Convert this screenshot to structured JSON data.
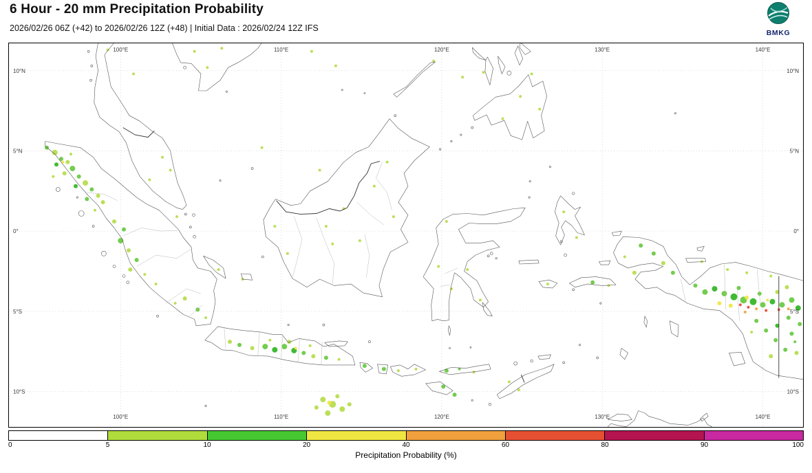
{
  "header": {
    "title": "6 Hour - 20 mm Precipitation Probability",
    "subtitle": "2026/02/26 06Z (+42) to 2026/02/26 12Z (+48) | Initial Data : 2026/02/24 12Z IFS",
    "logo_text": "BMKG"
  },
  "map": {
    "lon_ticks": [
      "100°E",
      "110°E",
      "120°E",
      "130°E",
      "140°E"
    ],
    "lon_values": [
      100,
      110,
      120,
      130,
      140
    ],
    "lat_ticks": [
      "10°N",
      "5°N",
      "0°",
      "5°S",
      "10°S"
    ],
    "lat_values": [
      10,
      5,
      0,
      -5,
      -10
    ],
    "extent": {
      "lon_min": 93.0,
      "lon_max": 142.55,
      "lat_min": -12.25,
      "lat_max": 11.75
    }
  },
  "colorbar": {
    "label": "Precipitation Probability (%)",
    "ticks": [
      0,
      5,
      10,
      20,
      40,
      60,
      80,
      90,
      100
    ],
    "colors": [
      "#ffffff",
      "#b0dc3c",
      "#46c832",
      "#f0e641",
      "#f0a03c",
      "#e65032",
      "#b41450",
      "#c828a0"
    ]
  },
  "precip": {
    "palette": {
      "lg": "#b4dc46",
      "g": "#64c83c",
      "bg": "#2cb41e",
      "y": "#f0e641",
      "o": "#f0a03c",
      "r": "#e64632"
    },
    "blobs": [
      [
        95.4,
        5.2,
        3,
        "g"
      ],
      [
        95.9,
        4.9,
        4,
        "lg"
      ],
      [
        96.3,
        4.5,
        3,
        "g"
      ],
      [
        96.0,
        4.15,
        3,
        "bg"
      ],
      [
        96.7,
        4.3,
        3,
        "lg"
      ],
      [
        97.0,
        3.9,
        4,
        "g"
      ],
      [
        96.5,
        3.6,
        3,
        "lg"
      ],
      [
        97.4,
        3.4,
        3,
        "g"
      ],
      [
        97.8,
        3.0,
        4,
        "lg"
      ],
      [
        97.2,
        2.8,
        3,
        "bg"
      ],
      [
        98.2,
        2.6,
        3,
        "g"
      ],
      [
        98.6,
        2.2,
        3,
        "lg"
      ],
      [
        97.9,
        2.0,
        3,
        "g"
      ],
      [
        98.9,
        1.8,
        3,
        "lg"
      ],
      [
        95.8,
        3.4,
        2,
        "lg"
      ],
      [
        96.9,
        4.8,
        2,
        "lg"
      ],
      [
        98.4,
        1.3,
        2,
        "lg"
      ],
      [
        96.4,
        4.3,
        2,
        "y"
      ],
      [
        99.6,
        0.6,
        3,
        "lg"
      ],
      [
        100.2,
        0.1,
        3,
        "g"
      ],
      [
        100.0,
        -0.6,
        4,
        "g"
      ],
      [
        100.5,
        -1.2,
        3,
        "lg"
      ],
      [
        101.0,
        -1.8,
        3,
        "g"
      ],
      [
        100.6,
        -2.4,
        3,
        "lg"
      ],
      [
        101.5,
        -2.7,
        2,
        "lg"
      ],
      [
        102.2,
        -3.3,
        2,
        "lg"
      ],
      [
        102.6,
        4.6,
        2,
        "lg"
      ],
      [
        103.1,
        3.8,
        2,
        "lg"
      ],
      [
        101.8,
        3.2,
        2,
        "lg"
      ],
      [
        103.5,
        0.9,
        2,
        "lg"
      ],
      [
        104.0,
        -4.2,
        3,
        "lg"
      ],
      [
        104.8,
        -4.9,
        3,
        "g"
      ],
      [
        105.3,
        -5.4,
        2,
        "lg"
      ],
      [
        103.4,
        -4.5,
        2,
        "lg"
      ],
      [
        106.1,
        -2.4,
        2,
        "lg"
      ],
      [
        107.6,
        -3.0,
        2,
        "lg"
      ],
      [
        106.8,
        -6.9,
        3,
        "lg"
      ],
      [
        107.4,
        -7.1,
        3,
        "g"
      ],
      [
        108.2,
        -7.3,
        3,
        "lg"
      ],
      [
        109.0,
        -7.2,
        4,
        "g"
      ],
      [
        109.6,
        -7.4,
        4,
        "bg"
      ],
      [
        110.2,
        -7.2,
        4,
        "g"
      ],
      [
        110.8,
        -7.45,
        4,
        "bg"
      ],
      [
        111.4,
        -7.6,
        3,
        "g"
      ],
      [
        112.0,
        -7.8,
        3,
        "lg"
      ],
      [
        112.8,
        -7.9,
        3,
        "g"
      ],
      [
        113.6,
        -8.0,
        2,
        "lg"
      ],
      [
        110.5,
        -6.9,
        3,
        "lg"
      ],
      [
        111.8,
        -7.15,
        2,
        "lg"
      ],
      [
        109.3,
        -6.8,
        2,
        "lg"
      ],
      [
        110.9,
        -7.3,
        2,
        "y"
      ],
      [
        115.2,
        -8.4,
        3,
        "g"
      ],
      [
        116.4,
        -8.6,
        3,
        "g"
      ],
      [
        117.3,
        -8.7,
        2,
        "lg"
      ],
      [
        118.4,
        -8.6,
        2,
        "lg"
      ],
      [
        120.3,
        -8.7,
        3,
        "g"
      ],
      [
        121.1,
        -8.6,
        2,
        "g"
      ],
      [
        122.0,
        -8.8,
        2,
        "lg"
      ],
      [
        120.1,
        -9.7,
        3,
        "g"
      ],
      [
        124.2,
        -9.4,
        2,
        "lg"
      ],
      [
        124.8,
        -9.9,
        2,
        "lg"
      ],
      [
        120.8,
        -10.2,
        3,
        "g"
      ],
      [
        112.6,
        -10.5,
        4,
        "lg"
      ],
      [
        113.2,
        -10.8,
        5,
        "lg"
      ],
      [
        113.8,
        -11.1,
        4,
        "lg"
      ],
      [
        112.9,
        -11.35,
        4,
        "lg"
      ],
      [
        113.5,
        -10.3,
        3,
        "lg"
      ],
      [
        114.25,
        -10.8,
        3,
        "lg"
      ],
      [
        112.2,
        -11.0,
        3,
        "lg"
      ],
      [
        113.0,
        -10.7,
        3,
        "y"
      ],
      [
        110.4,
        -1.4,
        2,
        "lg"
      ],
      [
        112.8,
        0.3,
        2,
        "lg"
      ],
      [
        113.9,
        1.4,
        2,
        "lg"
      ],
      [
        115.8,
        2.8,
        2,
        "lg"
      ],
      [
        116.6,
        4.3,
        2,
        "lg"
      ],
      [
        114.9,
        -0.6,
        2,
        "lg"
      ],
      [
        117.0,
        0.9,
        2,
        "lg"
      ],
      [
        113.2,
        -0.8,
        2,
        "lg"
      ],
      [
        109.6,
        0.3,
        2,
        "lg"
      ],
      [
        119.8,
        -2.2,
        2,
        "lg"
      ],
      [
        120.6,
        -3.6,
        2,
        "lg"
      ],
      [
        121.6,
        -2.4,
        2,
        "lg"
      ],
      [
        122.4,
        -4.3,
        2,
        "lg"
      ],
      [
        120.3,
        0.6,
        2,
        "lg"
      ],
      [
        127.6,
        1.2,
        2,
        "lg"
      ],
      [
        128.4,
        -0.4,
        2,
        "lg"
      ],
      [
        129.4,
        -3.2,
        3,
        "g"
      ],
      [
        126.6,
        -3.3,
        2,
        "lg"
      ],
      [
        130.4,
        -3.4,
        2,
        "lg"
      ],
      [
        132.4,
        -0.9,
        3,
        "g"
      ],
      [
        133.2,
        -1.4,
        3,
        "g"
      ],
      [
        133.8,
        -2.0,
        3,
        "lg"
      ],
      [
        132.0,
        -2.6,
        3,
        "lg"
      ],
      [
        134.4,
        -2.6,
        3,
        "g"
      ],
      [
        131.4,
        -1.6,
        2,
        "lg"
      ],
      [
        135.8,
        -3.4,
        3,
        "g"
      ],
      [
        136.4,
        -3.8,
        4,
        "g"
      ],
      [
        137.0,
        -3.6,
        4,
        "bg"
      ],
      [
        137.6,
        -3.9,
        4,
        "g"
      ],
      [
        138.2,
        -4.1,
        5,
        "bg"
      ],
      [
        138.8,
        -4.3,
        5,
        "g"
      ],
      [
        139.4,
        -4.4,
        5,
        "bg"
      ],
      [
        140.0,
        -4.6,
        4,
        "g"
      ],
      [
        140.6,
        -4.4,
        4,
        "bg"
      ],
      [
        141.2,
        -4.6,
        4,
        "g"
      ],
      [
        141.8,
        -4.3,
        4,
        "g"
      ],
      [
        142.2,
        -4.8,
        4,
        "bg"
      ],
      [
        138.5,
        -3.55,
        3,
        "g"
      ],
      [
        139.8,
        -3.9,
        3,
        "g"
      ],
      [
        140.9,
        -3.8,
        3,
        "lg"
      ],
      [
        141.5,
        -3.5,
        3,
        "lg"
      ],
      [
        137.3,
        -4.5,
        3,
        "y"
      ],
      [
        138.0,
        -4.65,
        3,
        "y"
      ],
      [
        139.0,
        -4.15,
        3,
        "y"
      ],
      [
        140.3,
        -4.3,
        2,
        "y"
      ],
      [
        138.6,
        -4.6,
        2,
        "r"
      ],
      [
        139.1,
        -4.75,
        2,
        "r"
      ],
      [
        139.6,
        -4.85,
        2,
        "o"
      ],
      [
        140.2,
        -4.95,
        2,
        "r"
      ],
      [
        138.9,
        -5.05,
        2,
        "o"
      ],
      [
        141.0,
        -4.9,
        2,
        "r"
      ],
      [
        141.6,
        -4.85,
        2,
        "o"
      ],
      [
        140.2,
        -6.2,
        3,
        "g"
      ],
      [
        140.8,
        -6.8,
        3,
        "g"
      ],
      [
        141.4,
        -7.4,
        3,
        "g"
      ],
      [
        140.5,
        -7.8,
        3,
        "lg"
      ],
      [
        141.8,
        -6.4,
        3,
        "g"
      ],
      [
        142.1,
        -7.6,
        3,
        "lg"
      ],
      [
        139.6,
        -5.6,
        3,
        "g"
      ],
      [
        140.9,
        -5.9,
        3,
        "bg"
      ],
      [
        141.6,
        -5.4,
        3,
        "g"
      ],
      [
        142.3,
        -5.8,
        3,
        "g"
      ],
      [
        142.0,
        -6.9,
        2,
        "g"
      ],
      [
        139.3,
        -6.3,
        2,
        "lg"
      ],
      [
        137.8,
        -2.4,
        2,
        "lg"
      ],
      [
        139.0,
        -2.6,
        2,
        "lg"
      ],
      [
        140.5,
        -2.8,
        2,
        "lg"
      ],
      [
        136.2,
        -1.9,
        2,
        "lg"
      ],
      [
        121.3,
        9.6,
        2,
        "lg"
      ],
      [
        122.6,
        9.9,
        2,
        "lg"
      ],
      [
        124.9,
        8.4,
        2,
        "lg"
      ],
      [
        126.1,
        7.6,
        2,
        "lg"
      ],
      [
        119.5,
        10.6,
        2,
        "lg"
      ],
      [
        125.6,
        9.8,
        2,
        "lg"
      ],
      [
        123.8,
        7.0,
        2,
        "lg"
      ],
      [
        104.6,
        11.2,
        2,
        "lg"
      ],
      [
        106.3,
        11.4,
        2,
        "lg"
      ],
      [
        100.8,
        9.8,
        2,
        "lg"
      ],
      [
        99.2,
        11.3,
        2,
        "lg"
      ],
      [
        105.4,
        10.2,
        2,
        "lg"
      ],
      [
        111.9,
        11.2,
        2,
        "lg"
      ],
      [
        113.4,
        10.3,
        2,
        "lg"
      ],
      [
        108.8,
        5.2,
        2,
        "lg"
      ],
      [
        112.4,
        3.8,
        2,
        "lg"
      ]
    ]
  }
}
